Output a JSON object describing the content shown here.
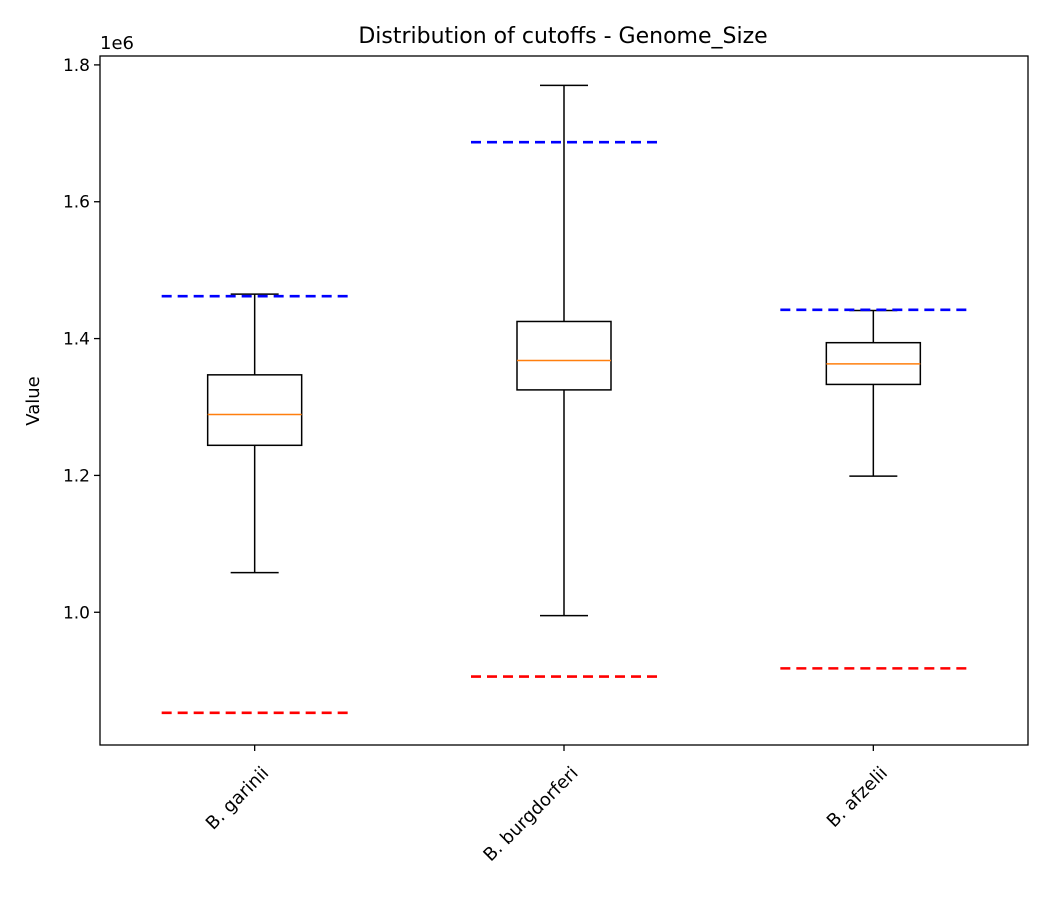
{
  "chart_data": {
    "type": "box",
    "title": "Distribution of cutoffs - Genome_Size",
    "xlabel": "",
    "ylabel": "Value",
    "y_offset_label": "1e6",
    "ylim": [
      0.806,
      1.813
    ],
    "y_ticks": [
      1.0,
      1.2,
      1.4,
      1.6,
      1.8
    ],
    "y_tick_labels": [
      "1.0",
      "1.2",
      "1.4",
      "1.6",
      "1.8"
    ],
    "x_tick_rotation": 45,
    "grid": false,
    "categories": [
      "B. garinii",
      "B. burgdorferi",
      "B. afzelii"
    ],
    "boxes": [
      {
        "name": "B. garinii",
        "whisker_low": 1.058,
        "q1": 1.244,
        "median": 1.289,
        "q3": 1.347,
        "whisker_high": 1.465
      },
      {
        "name": "B. burgdorferi",
        "whisker_low": 0.995,
        "q1": 1.325,
        "median": 1.368,
        "q3": 1.425,
        "whisker_high": 1.77
      },
      {
        "name": "B. afzelii",
        "whisker_low": 1.199,
        "q1": 1.333,
        "median": 1.363,
        "q3": 1.394,
        "whisker_high": 1.441
      }
    ],
    "upper_cutoffs": [
      1.462,
      1.687,
      1.442
    ],
    "lower_cutoffs": [
      0.853,
      0.906,
      0.918
    ],
    "colors": {
      "box": "#000000",
      "median": "#ff7f0e",
      "upper_cutoff": "#0000ff",
      "lower_cutoff": "#ff0000",
      "background": "#ffffff"
    }
  }
}
